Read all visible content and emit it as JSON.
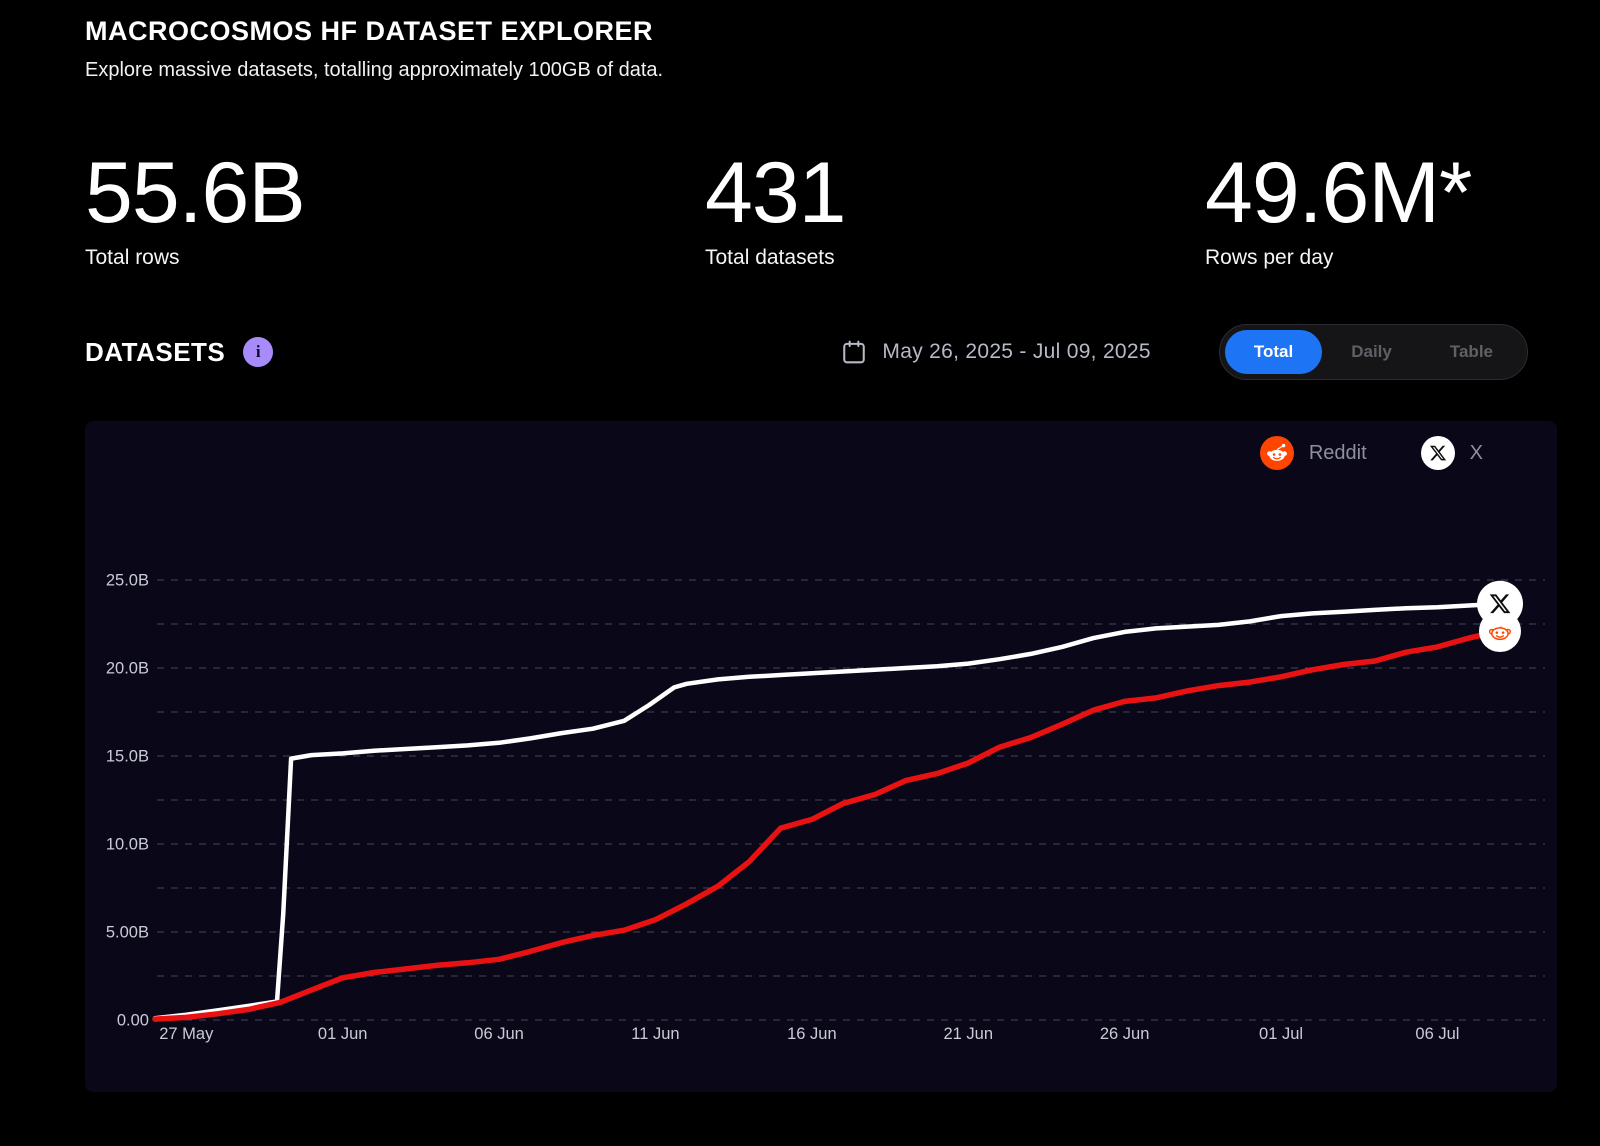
{
  "header": {
    "title": "MACROCOSMOS HF DATASET EXPLORER",
    "subtitle": "Explore massive datasets, totalling approximately 100GB of data."
  },
  "stats": [
    {
      "value": "55.6B",
      "label": "Total rows"
    },
    {
      "value": "431",
      "label": "Total datasets"
    },
    {
      "value": "49.6M*",
      "label": "Rows per day"
    }
  ],
  "section": {
    "heading": "DATASETS",
    "info_icon": "info-icon",
    "info_glyph": "i",
    "date_icon": "calendar-icon",
    "date_range": "May 26, 2025 - Jul 09, 2025",
    "view_options": [
      {
        "label": "Total",
        "active": true
      },
      {
        "label": "Daily",
        "active": false
      },
      {
        "label": "Table",
        "active": false
      }
    ]
  },
  "legend": [
    {
      "name": "Reddit",
      "icon": "reddit-icon",
      "color": "#ff4500"
    },
    {
      "name": "X",
      "icon": "x-icon",
      "color": "#ffffff"
    }
  ],
  "colors": {
    "page_bg": "#000000",
    "panel_bg": "#0a0718",
    "accent_blue": "#1d74f5",
    "accent_purple": "#a78bfa",
    "reddit_orange": "#ff4500",
    "line_red": "#e91212",
    "line_white": "#ffffff",
    "grid": "rgba(170,176,200,0.38)",
    "axis_text": "#c9ccd6"
  },
  "chart_data": {
    "type": "line",
    "title": "",
    "xlabel": "",
    "ylabel": "",
    "ylim": [
      0,
      25
    ],
    "x_domain_days": [
      0,
      43
    ],
    "grid": "dashed-horizontal",
    "legend_position": "top-right",
    "y_ticks": [
      {
        "v": 0,
        "label": "0.00"
      },
      {
        "v": 5,
        "label": "5.00B"
      },
      {
        "v": 10,
        "label": "10.0B"
      },
      {
        "v": 15,
        "label": "15.0B"
      },
      {
        "v": 20,
        "label": "20.0B"
      },
      {
        "v": 25,
        "label": "25.0B"
      }
    ],
    "gridline_values": [
      0,
      2.5,
      5,
      7.5,
      10,
      12.5,
      15,
      17.5,
      20,
      22.5,
      25
    ],
    "x_ticks": [
      {
        "day": 1,
        "label": "27 May"
      },
      {
        "day": 6,
        "label": "01 Jun"
      },
      {
        "day": 11,
        "label": "06 Jun"
      },
      {
        "day": 16,
        "label": "11 Jun"
      },
      {
        "day": 21,
        "label": "16 Jun"
      },
      {
        "day": 26,
        "label": "21 Jun"
      },
      {
        "day": 31,
        "label": "26 Jun"
      },
      {
        "day": 36,
        "label": "01 Jul"
      },
      {
        "day": 41,
        "label": "06 Jul"
      }
    ],
    "series": [
      {
        "name": "X",
        "color": "#ffffff",
        "width": 4.5,
        "unit": "B rows",
        "points": [
          [
            0,
            0.1
          ],
          [
            1,
            0.3
          ],
          [
            2,
            0.55
          ],
          [
            3,
            0.8
          ],
          [
            3.9,
            1.05
          ],
          [
            4.1,
            6
          ],
          [
            4.35,
            14.85
          ],
          [
            5,
            15.05
          ],
          [
            6,
            15.15
          ],
          [
            7,
            15.3
          ],
          [
            8,
            15.4
          ],
          [
            9,
            15.5
          ],
          [
            10,
            15.6
          ],
          [
            11,
            15.75
          ],
          [
            12,
            16.0
          ],
          [
            13,
            16.3
          ],
          [
            14,
            16.55
          ],
          [
            15,
            17.0
          ],
          [
            15.8,
            17.9
          ],
          [
            16.6,
            18.9
          ],
          [
            17,
            19.1
          ],
          [
            18,
            19.35
          ],
          [
            19,
            19.5
          ],
          [
            20,
            19.6
          ],
          [
            21,
            19.7
          ],
          [
            22,
            19.8
          ],
          [
            23,
            19.9
          ],
          [
            24,
            20.0
          ],
          [
            25,
            20.1
          ],
          [
            26,
            20.25
          ],
          [
            27,
            20.5
          ],
          [
            28,
            20.8
          ],
          [
            29,
            21.2
          ],
          [
            30,
            21.7
          ],
          [
            31,
            22.05
          ],
          [
            32,
            22.25
          ],
          [
            33,
            22.35
          ],
          [
            34,
            22.45
          ],
          [
            35,
            22.65
          ],
          [
            36,
            22.95
          ],
          [
            37,
            23.1
          ],
          [
            38,
            23.2
          ],
          [
            39,
            23.3
          ],
          [
            40,
            23.4
          ],
          [
            41,
            23.45
          ],
          [
            42,
            23.55
          ],
          [
            43,
            23.65
          ]
        ]
      },
      {
        "name": "Reddit",
        "color": "#e91212",
        "width": 5.5,
        "unit": "B rows",
        "points": [
          [
            0,
            0.05
          ],
          [
            1,
            0.15
          ],
          [
            2,
            0.35
          ],
          [
            3,
            0.6
          ],
          [
            4,
            1.0
          ],
          [
            5,
            1.7
          ],
          [
            6,
            2.4
          ],
          [
            7,
            2.7
          ],
          [
            8,
            2.9
          ],
          [
            9,
            3.1
          ],
          [
            10,
            3.25
          ],
          [
            11,
            3.45
          ],
          [
            12,
            3.9
          ],
          [
            13,
            4.4
          ],
          [
            14,
            4.8
          ],
          [
            15,
            5.1
          ],
          [
            16,
            5.7
          ],
          [
            17,
            6.6
          ],
          [
            18,
            7.6
          ],
          [
            19,
            9.0
          ],
          [
            20,
            10.9
          ],
          [
            21,
            11.4
          ],
          [
            22,
            12.3
          ],
          [
            23,
            12.8
          ],
          [
            24,
            13.6
          ],
          [
            25,
            14.0
          ],
          [
            26,
            14.6
          ],
          [
            27,
            15.5
          ],
          [
            28,
            16.05
          ],
          [
            29,
            16.8
          ],
          [
            30,
            17.6
          ],
          [
            31,
            18.1
          ],
          [
            32,
            18.3
          ],
          [
            33,
            18.7
          ],
          [
            34,
            19.0
          ],
          [
            35,
            19.2
          ],
          [
            36,
            19.5
          ],
          [
            37,
            19.9
          ],
          [
            38,
            20.2
          ],
          [
            39,
            20.4
          ],
          [
            40,
            20.9
          ],
          [
            41,
            21.2
          ],
          [
            42,
            21.7
          ],
          [
            43,
            22.1
          ]
        ]
      }
    ]
  }
}
